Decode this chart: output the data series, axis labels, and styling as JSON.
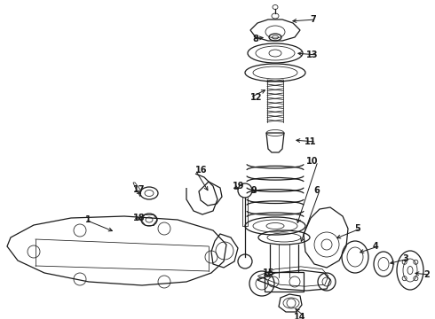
{
  "bg_color": "#ffffff",
  "line_color": "#1a1a1a",
  "fig_width": 4.9,
  "fig_height": 3.6,
  "dpi": 100,
  "lw": 0.9,
  "lw_thin": 0.55,
  "fontsize": 7.0
}
